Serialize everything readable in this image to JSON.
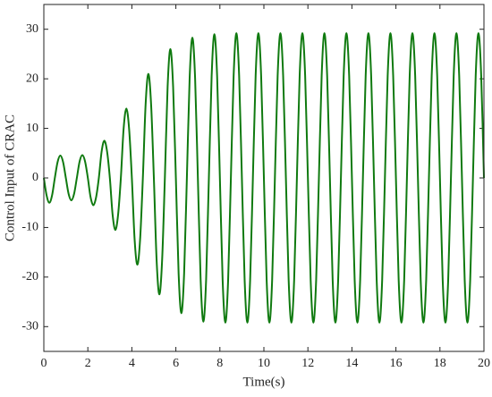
{
  "chart_data": {
    "type": "line",
    "xlabel": "Time(s)",
    "ylabel": "Control Input of CRAC",
    "xlim": [
      0,
      20
    ],
    "ylim": [
      -35,
      35
    ],
    "xticks": [
      0,
      2,
      4,
      6,
      8,
      10,
      12,
      14,
      16,
      18,
      20
    ],
    "yticks": [
      -30,
      -20,
      -10,
      0,
      10,
      20,
      30
    ],
    "x": [
      0,
      0.125,
      0.25,
      0.375,
      0.5,
      0.625,
      0.75,
      0.875,
      1,
      1.125,
      1.25,
      1.375,
      1.5,
      1.625,
      1.75,
      1.875,
      2,
      2.125,
      2.25,
      2.375,
      2.5,
      2.625,
      2.75,
      2.875,
      3,
      3.125,
      3.25,
      3.375,
      3.5,
      3.625,
      3.75,
      3.875,
      4,
      4.125,
      4.25,
      4.375,
      4.5,
      4.625,
      4.75,
      4.875,
      5,
      5.125,
      5.25,
      5.375,
      5.5,
      5.625,
      5.75,
      5.875,
      6,
      6.125,
      6.25,
      6.375,
      6.5,
      6.625,
      6.75,
      6.875,
      7,
      7.125,
      7.25,
      7.375,
      7.5,
      7.625,
      7.75,
      7.875,
      8,
      8.125,
      8.25,
      8.375,
      8.5,
      8.625,
      8.75,
      8.875,
      9,
      9.125,
      9.25,
      9.375,
      9.5,
      9.625,
      9.75,
      9.875,
      10,
      10.125,
      10.25,
      10.375,
      10.5,
      10.625,
      10.75,
      10.875,
      11,
      11.125,
      11.25,
      11.375,
      11.5,
      11.625,
      11.75,
      11.875,
      12,
      12.125,
      12.25,
      12.375,
      12.5,
      12.625,
      12.75,
      12.875,
      13,
      13.125,
      13.25,
      13.375,
      13.5,
      13.625,
      13.75,
      13.875,
      14,
      14.125,
      14.25,
      14.375,
      14.5,
      14.625,
      14.75,
      14.875,
      15,
      15.125,
      15.25,
      15.375,
      15.5,
      15.625,
      15.75,
      15.875,
      16,
      16.125,
      16.25,
      16.375,
      16.5,
      16.625,
      16.75,
      16.875,
      17,
      17.125,
      17.25,
      17.375,
      17.5,
      17.625,
      17.75,
      17.875,
      18,
      18.125,
      18.25,
      18.375,
      18.5,
      18.625,
      18.75,
      18.875,
      19,
      19.125,
      19.25,
      19.375,
      19.5,
      19.625,
      19.75,
      19.875,
      20
    ],
    "series": [
      {
        "color": "#107a10",
        "values": [
          0,
          -3.5,
          -5,
          -3.5,
          0,
          3.2,
          4.5,
          3.2,
          0,
          -3.2,
          -4.5,
          -3.2,
          0,
          3.3,
          4.6,
          3.3,
          0,
          -3.9,
          -5.5,
          -3.9,
          0,
          5.3,
          7.5,
          5.3,
          0,
          -7.4,
          -10.5,
          -7.4,
          0,
          9.9,
          14,
          9.9,
          0,
          -12.4,
          -17.5,
          -12.4,
          0,
          14.8,
          21,
          14.8,
          0,
          -16.6,
          -23.5,
          -16.6,
          0,
          18.4,
          26,
          18.4,
          0,
          -19.3,
          -27.3,
          -19.3,
          0,
          20,
          28.3,
          20,
          0,
          -20.5,
          -29,
          -20.5,
          0,
          20.5,
          29,
          20.5,
          0,
          -20.6,
          -29.2,
          -20.6,
          0,
          20.6,
          29.2,
          20.6,
          0,
          -20.6,
          -29.2,
          -20.6,
          0,
          20.6,
          29.2,
          20.6,
          0,
          -20.6,
          -29.2,
          -20.6,
          0,
          20.6,
          29.2,
          20.6,
          0,
          -20.6,
          -29.2,
          -20.6,
          0,
          20.6,
          29.2,
          20.6,
          0,
          -20.6,
          -29.2,
          -20.6,
          0,
          20.6,
          29.2,
          20.6,
          0,
          -20.6,
          -29.2,
          -20.6,
          0,
          20.6,
          29.2,
          20.6,
          0,
          -20.6,
          -29.2,
          -20.6,
          0,
          20.6,
          29.2,
          20.6,
          0,
          -20.6,
          -29.2,
          -20.6,
          0,
          20.6,
          29.2,
          20.6,
          0,
          -20.6,
          -29.2,
          -20.6,
          0,
          20.6,
          29.2,
          20.6,
          0,
          -20.6,
          -29.2,
          -20.6,
          0,
          20.6,
          29.2,
          20.6,
          0,
          -20.6,
          -29.2,
          -20.6,
          0,
          20.6,
          29.2,
          20.6,
          0,
          -20.6,
          -29.2,
          -20.6,
          0,
          20.6,
          29.2,
          20.6,
          0
        ]
      }
    ]
  }
}
